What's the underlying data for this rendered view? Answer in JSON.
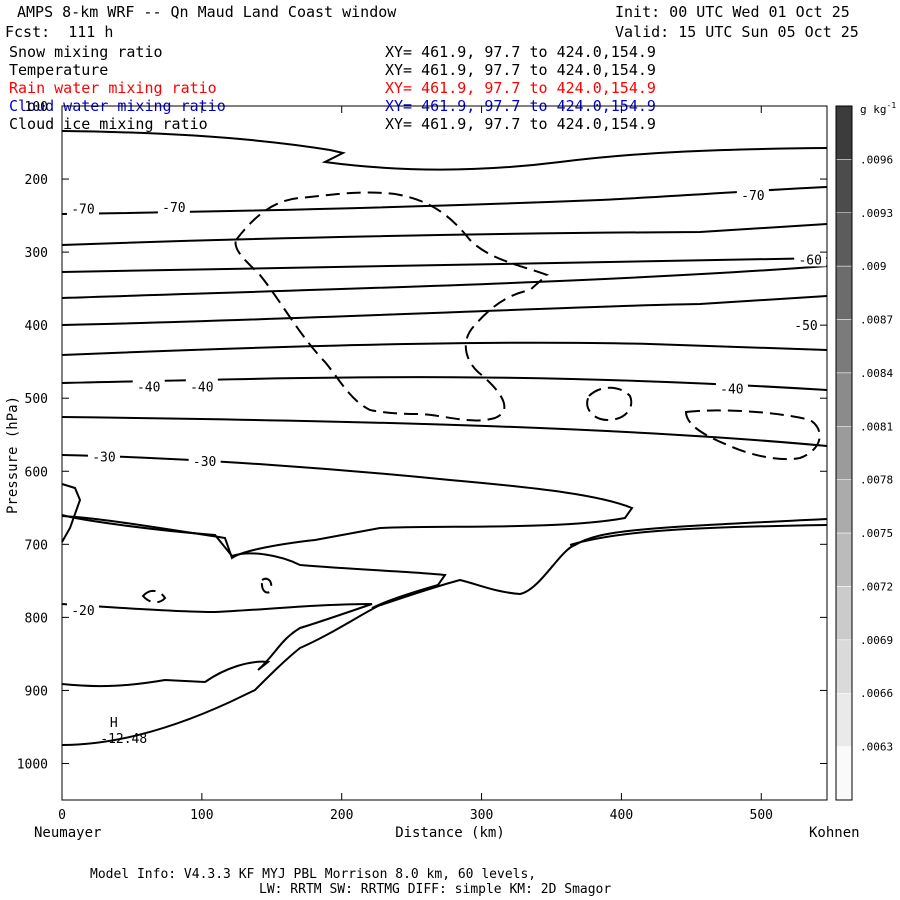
{
  "header": {
    "title": "AMPS 8-km WRF -- Qn Maud Land Coast window",
    "init": "Init: 00 UTC Wed 01 Oct 25",
    "fcst": "Fcst:  111 h",
    "valid": "Valid: 15 UTC Sun 05 Oct 25"
  },
  "fields": [
    {
      "name": "Snow mixing ratio",
      "xy": "XY= 461.9, 97.7 to 424.0,154.9",
      "color": "#000000"
    },
    {
      "name": "Temperature",
      "xy": "XY= 461.9, 97.7 to 424.0,154.9",
      "color": "#000000"
    },
    {
      "name": "Rain water mixing ratio",
      "xy": "XY= 461.9, 97.7 to 424.0,154.9",
      "color": "#ff0000"
    },
    {
      "name": "Cloud water mixing ratio",
      "xy": "XY= 461.9, 97.7 to 424.0,154.9",
      "color": "#0000cc"
    },
    {
      "name": "Cloud ice mixing ratio",
      "xy": "XY= 461.9, 97.7 to 424.0,154.9",
      "color": "#000000"
    }
  ],
  "footer": {
    "line1": "Model Info: V4.3.3   KF      MYJ PBL  Morrison           8.0 km,  60 levels,",
    "line2": "LW: RRTM SW: RRTMG   DIFF: simple KM: 2D Smagor"
  },
  "chart_data": {
    "type": "contour",
    "ylabel": "Pressure (hPa)",
    "xlabel": "Distance (km)",
    "x_endpoints": {
      "left": "Neumayer",
      "right": "Kohnen"
    },
    "xlim": [
      0,
      547
    ],
    "ylim": [
      1050,
      100
    ],
    "yaxis_inverted": true,
    "xticks": [
      0,
      100,
      200,
      300,
      400,
      500
    ],
    "yticks": [
      100,
      200,
      300,
      400,
      500,
      600,
      700,
      800,
      900,
      1000
    ],
    "colorbar": {
      "unit": "g kg",
      "unit_exponent": "-1",
      "labels": [
        ".0096",
        ".0093",
        ".009",
        ".0087",
        ".0084",
        ".0081",
        ".0078",
        ".0075",
        ".0072",
        ".0069",
        ".0066",
        ".0063"
      ]
    },
    "temperature_contour_labels": [
      {
        "text": "-70",
        "x": 15,
        "p": 240
      },
      {
        "text": "-70",
        "x": 80,
        "p": 238
      },
      {
        "text": "-70",
        "x": 494,
        "p": 222
      },
      {
        "text": "-60",
        "x": 535,
        "p": 310
      },
      {
        "text": "-50",
        "x": 532,
        "p": 400
      },
      {
        "text": "-40",
        "x": 62,
        "p": 484
      },
      {
        "text": "-40",
        "x": 100,
        "p": 484
      },
      {
        "text": "-40",
        "x": 479,
        "p": 487
      },
      {
        "text": "-30",
        "x": 30,
        "p": 580
      },
      {
        "text": "-30",
        "x": 102,
        "p": 586
      },
      {
        "text": "-20",
        "x": 15,
        "p": 790
      }
    ],
    "extremum": {
      "label": "H",
      "value": "-12.48",
      "x": 37,
      "p": 950
    }
  }
}
